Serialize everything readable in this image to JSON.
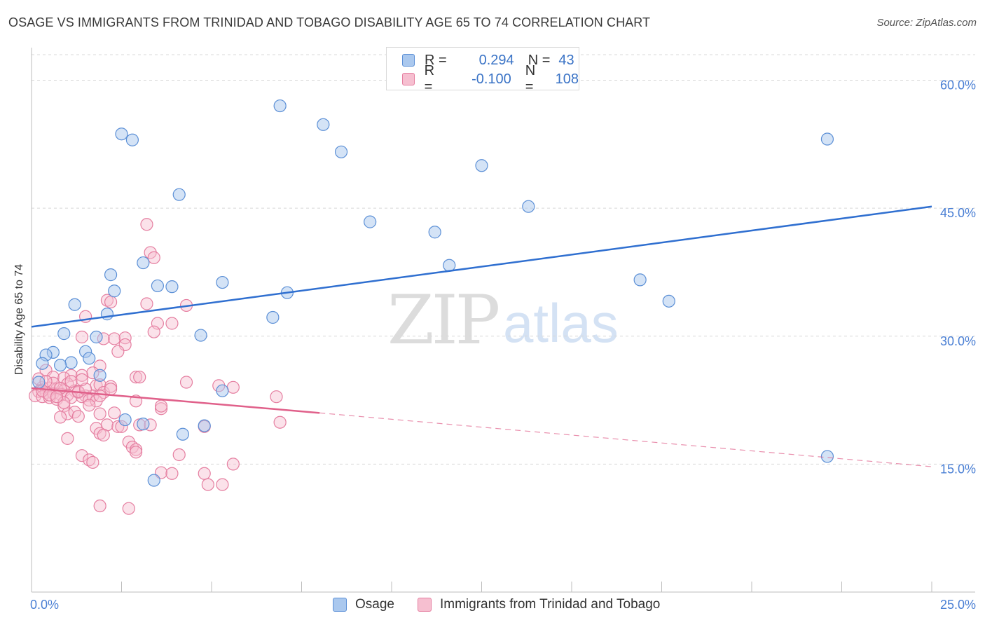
{
  "title": "OSAGE VS IMMIGRANTS FROM TRINIDAD AND TOBAGO DISABILITY AGE 65 TO 74 CORRELATION CHART",
  "source": "Source: ZipAtlas.com",
  "watermark": {
    "zip": "ZIP",
    "atlas": "atlas"
  },
  "legend": {
    "r_label": "R =",
    "n_label": "N =",
    "rows": [
      {
        "r": "0.294",
        "n": "43",
        "color": "#5b8fd6",
        "fill": "#aac8ee"
      },
      {
        "r": "-0.100",
        "n": "108",
        "color": "#e57ea0",
        "fill": "#f6bfd0"
      }
    ]
  },
  "bottom_legend": [
    "Osage",
    "Immigrants from Trinidad and Tobago"
  ],
  "colors": {
    "osage_stroke": "#5b8fd6",
    "osage_fill": "#aac8ee",
    "tt_stroke": "#e57ea0",
    "tt_fill": "#f6bfd0",
    "osage_line": "#2f6fd0",
    "tt_line": "#e0608a",
    "grid": "#d8d8d8",
    "tick_text": "#4a7fd4"
  },
  "chart_data": {
    "type": "scatter",
    "title": "OSAGE VS IMMIGRANTS FROM TRINIDAD AND TOBAGO DISABILITY AGE 65 TO 74 CORRELATION CHART",
    "xlabel": "",
    "ylabel": "Disability Age 65 to 74",
    "xlim": [
      0,
      25
    ],
    "ylim": [
      0,
      63
    ],
    "x_tick_labels": [
      "0.0%",
      "25.0%"
    ],
    "y_ticks": [
      15,
      30,
      45,
      60
    ],
    "y_tick_labels": [
      "15.0%",
      "30.0%",
      "45.0%",
      "60.0%"
    ],
    "grid": true,
    "legend_position": "top-center",
    "series": [
      {
        "name": "Osage",
        "trend": {
          "x": [
            0,
            25
          ],
          "y": [
            31.1,
            45.2
          ],
          "style": "solid"
        },
        "points": [
          [
            2.5,
            53.7
          ],
          [
            2.8,
            53.0
          ],
          [
            6.9,
            57.0
          ],
          [
            8.1,
            54.8
          ],
          [
            8.6,
            51.6
          ],
          [
            12.5,
            50.0
          ],
          [
            22.1,
            53.1
          ],
          [
            4.1,
            46.6
          ],
          [
            13.8,
            45.2
          ],
          [
            9.4,
            43.4
          ],
          [
            11.2,
            42.2
          ],
          [
            3.1,
            38.6
          ],
          [
            11.6,
            38.3
          ],
          [
            16.9,
            36.6
          ],
          [
            2.2,
            37.2
          ],
          [
            3.5,
            35.9
          ],
          [
            3.9,
            35.8
          ],
          [
            5.3,
            36.3
          ],
          [
            2.3,
            35.3
          ],
          [
            7.1,
            35.1
          ],
          [
            17.7,
            34.1
          ],
          [
            1.2,
            33.7
          ],
          [
            2.1,
            32.6
          ],
          [
            6.7,
            32.2
          ],
          [
            1.8,
            29.9
          ],
          [
            0.9,
            30.3
          ],
          [
            4.7,
            30.1
          ],
          [
            0.6,
            28.1
          ],
          [
            0.4,
            27.8
          ],
          [
            1.5,
            28.2
          ],
          [
            1.6,
            27.4
          ],
          [
            0.3,
            26.8
          ],
          [
            1.1,
            26.9
          ],
          [
            0.8,
            26.6
          ],
          [
            1.9,
            25.4
          ],
          [
            0.2,
            24.6
          ],
          [
            5.3,
            23.6
          ],
          [
            2.6,
            20.2
          ],
          [
            3.1,
            19.7
          ],
          [
            4.2,
            18.5
          ],
          [
            4.8,
            19.5
          ],
          [
            22.1,
            15.9
          ],
          [
            3.4,
            13.1
          ]
        ]
      },
      {
        "name": "Immigrants from Trinidad and Tobago",
        "trend": {
          "x": [
            0,
            8
          ],
          "y": [
            23.9,
            21.0
          ],
          "style": "solid",
          "extension": {
            "x": [
              8,
              25
            ],
            "y": [
              21.0,
              14.7
            ],
            "style": "dashed"
          }
        },
        "points": [
          [
            3.2,
            43.1
          ],
          [
            3.3,
            39.8
          ],
          [
            3.4,
            39.2
          ],
          [
            2.1,
            34.2
          ],
          [
            2.2,
            34.0
          ],
          [
            3.2,
            33.8
          ],
          [
            4.3,
            33.6
          ],
          [
            1.5,
            32.3
          ],
          [
            3.5,
            31.5
          ],
          [
            3.9,
            31.5
          ],
          [
            3.4,
            30.5
          ],
          [
            1.4,
            29.9
          ],
          [
            2.0,
            29.7
          ],
          [
            2.3,
            29.7
          ],
          [
            2.6,
            29.8
          ],
          [
            2.6,
            29.0
          ],
          [
            2.4,
            28.2
          ],
          [
            1.9,
            26.5
          ],
          [
            0.4,
            26.0
          ],
          [
            1.7,
            25.7
          ],
          [
            2.9,
            25.2
          ],
          [
            1.1,
            25.4
          ],
          [
            1.4,
            25.4
          ],
          [
            0.6,
            25.2
          ],
          [
            0.9,
            25.1
          ],
          [
            4.3,
            24.6
          ],
          [
            5.2,
            24.2
          ],
          [
            1.0,
            24.4
          ],
          [
            1.8,
            24.2
          ],
          [
            1.9,
            24.3
          ],
          [
            0.3,
            24.0
          ],
          [
            0.5,
            23.9
          ],
          [
            0.7,
            23.8
          ],
          [
            0.9,
            23.6
          ],
          [
            1.2,
            23.6
          ],
          [
            0.2,
            23.5
          ],
          [
            0.4,
            23.4
          ],
          [
            0.6,
            23.3
          ],
          [
            0.8,
            23.2
          ],
          [
            1.0,
            23.1
          ],
          [
            1.3,
            23.4
          ],
          [
            1.5,
            23.0
          ],
          [
            1.7,
            23.0
          ],
          [
            2.0,
            23.4
          ],
          [
            0.1,
            23.0
          ],
          [
            0.3,
            22.9
          ],
          [
            0.5,
            22.8
          ],
          [
            0.7,
            22.6
          ],
          [
            1.1,
            22.8
          ],
          [
            1.4,
            22.9
          ],
          [
            1.6,
            22.5
          ],
          [
            1.8,
            22.4
          ],
          [
            2.9,
            22.4
          ],
          [
            6.8,
            22.9
          ],
          [
            0.9,
            21.8
          ],
          [
            1.6,
            21.9
          ],
          [
            3.6,
            21.5
          ],
          [
            3.6,
            21.8
          ],
          [
            1.0,
            20.9
          ],
          [
            1.2,
            21.1
          ],
          [
            1.9,
            20.9
          ],
          [
            2.3,
            21.0
          ],
          [
            0.8,
            20.5
          ],
          [
            1.3,
            20.6
          ],
          [
            6.9,
            19.9
          ],
          [
            2.1,
            19.6
          ],
          [
            2.4,
            19.4
          ],
          [
            2.5,
            19.4
          ],
          [
            3.0,
            19.6
          ],
          [
            3.3,
            19.6
          ],
          [
            4.8,
            19.4
          ],
          [
            1.8,
            19.2
          ],
          [
            1.9,
            18.6
          ],
          [
            2.0,
            18.4
          ],
          [
            1.0,
            18.0
          ],
          [
            2.7,
            17.6
          ],
          [
            2.8,
            17.0
          ],
          [
            2.9,
            16.7
          ],
          [
            2.9,
            16.4
          ],
          [
            1.4,
            16.0
          ],
          [
            4.1,
            16.1
          ],
          [
            1.6,
            15.5
          ],
          [
            1.7,
            15.2
          ],
          [
            5.6,
            15.0
          ],
          [
            3.6,
            14.0
          ],
          [
            3.9,
            13.9
          ],
          [
            4.8,
            13.9
          ],
          [
            4.9,
            12.6
          ],
          [
            5.3,
            12.6
          ],
          [
            1.9,
            10.1
          ],
          [
            2.7,
            9.8
          ],
          [
            1.3,
            23.5
          ],
          [
            0.6,
            24.5
          ],
          [
            0.2,
            25.0
          ],
          [
            2.2,
            24.1
          ],
          [
            3.0,
            25.2
          ],
          [
            1.1,
            24.7
          ],
          [
            0.8,
            23.9
          ],
          [
            0.4,
            24.7
          ],
          [
            1.5,
            23.8
          ],
          [
            5.6,
            24.0
          ],
          [
            0.9,
            22.2
          ],
          [
            0.3,
            23.6
          ],
          [
            1.4,
            24.9
          ],
          [
            2.2,
            23.8
          ],
          [
            0.5,
            23.1
          ],
          [
            0.7,
            22.9
          ],
          [
            1.9,
            23.0
          ]
        ]
      }
    ]
  }
}
